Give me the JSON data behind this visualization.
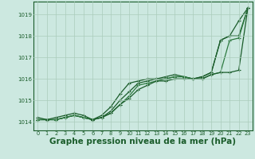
{
  "bg_color": "#cce8e0",
  "grid_color": "#aaccbb",
  "line_color_dark": "#1a5c2a",
  "line_color_med": "#2d7a40",
  "xlabel": "Graphe pression niveau de la mer (hPa)",
  "xlabel_fontsize": 7.5,
  "ylabel_ticks": [
    1014,
    1015,
    1016,
    1017,
    1018,
    1019
  ],
  "xlim": [
    -0.5,
    23.5
  ],
  "ylim": [
    1013.6,
    1019.6
  ],
  "xticks": [
    0,
    1,
    2,
    3,
    4,
    5,
    6,
    7,
    8,
    9,
    10,
    11,
    12,
    13,
    14,
    15,
    16,
    17,
    18,
    19,
    20,
    21,
    22,
    23
  ],
  "series": [
    [
      1014.1,
      1014.1,
      1014.1,
      1014.2,
      1014.3,
      1014.2,
      1014.1,
      1014.2,
      1014.5,
      1015.0,
      1015.4,
      1015.8,
      1015.9,
      1016.0,
      1016.0,
      1016.1,
      1016.1,
      1016.0,
      1016.1,
      1016.3,
      1017.8,
      1018.0,
      1018.7,
      1019.3
    ],
    [
      1014.1,
      1014.1,
      1014.1,
      1014.2,
      1014.3,
      1014.2,
      1014.1,
      1014.3,
      1014.7,
      1015.3,
      1015.8,
      1015.9,
      1016.0,
      1016.0,
      1016.1,
      1016.2,
      1016.1,
      1016.0,
      1016.1,
      1016.3,
      1017.8,
      1018.0,
      1018.0,
      1019.3
    ],
    [
      1014.1,
      1014.1,
      1014.1,
      1014.2,
      1014.3,
      1014.2,
      1014.1,
      1014.2,
      1014.4,
      1014.8,
      1015.2,
      1015.7,
      1015.8,
      1015.9,
      1016.0,
      1016.1,
      1016.1,
      1016.0,
      1016.0,
      1016.2,
      1016.3,
      1017.8,
      1017.9,
      1019.3
    ],
    [
      1014.2,
      1014.1,
      1014.2,
      1014.3,
      1014.4,
      1014.3,
      1014.1,
      1014.2,
      1014.4,
      1014.8,
      1015.1,
      1015.5,
      1015.7,
      1015.9,
      1015.9,
      1016.0,
      1016.0,
      1016.0,
      1016.0,
      1016.2,
      1016.3,
      1016.3,
      1016.4,
      1019.3
    ]
  ]
}
